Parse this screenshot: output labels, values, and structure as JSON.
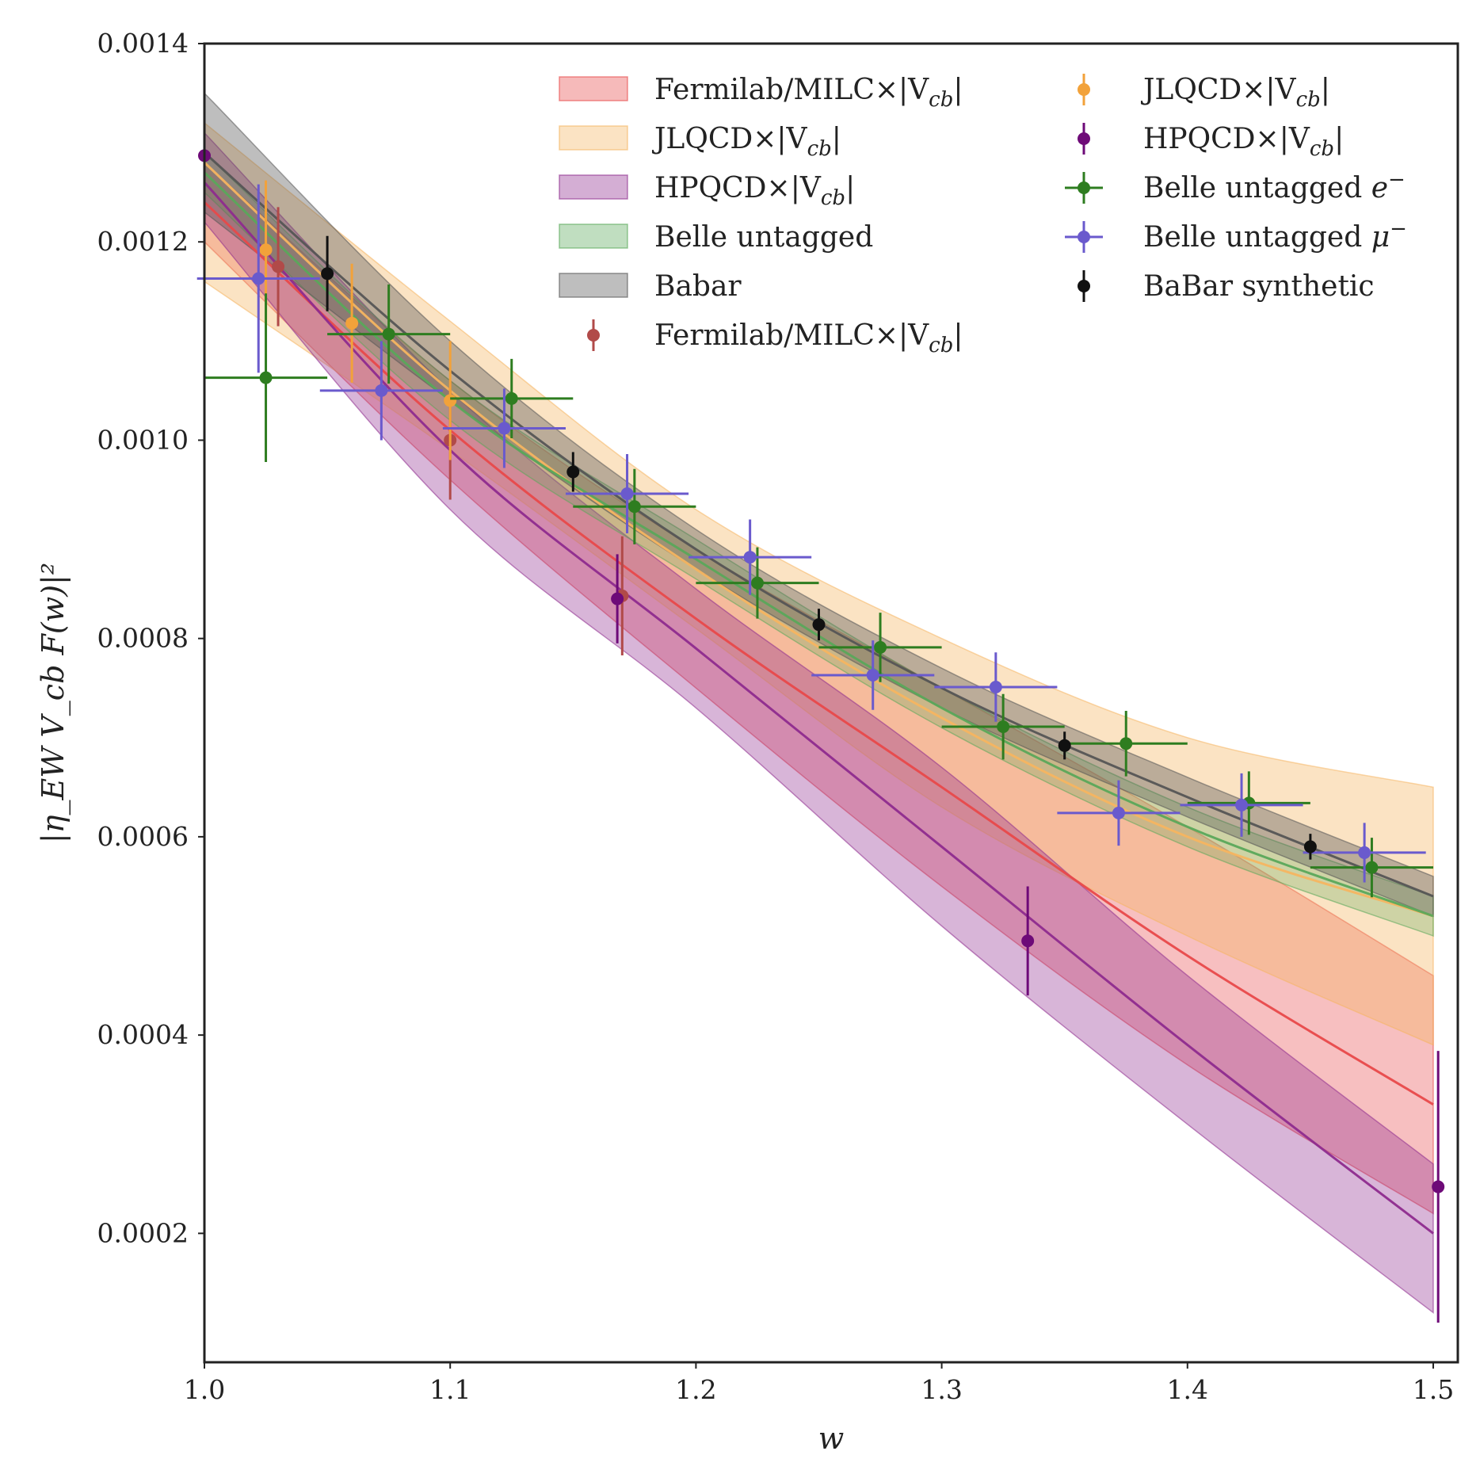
{
  "chart_data": {
    "type": "line",
    "title": "",
    "xlabel": "w",
    "ylabel": "|η_EW V_cb F(w)|²",
    "xlim": [
      1.0,
      1.51
    ],
    "ylim": [
      7e-05,
      0.0014
    ],
    "x_ticks": [
      {
        "v": 1.0,
        "label": "1.0"
      },
      {
        "v": 1.1,
        "label": "1.1"
      },
      {
        "v": 1.2,
        "label": "1.2"
      },
      {
        "v": 1.3,
        "label": "1.3"
      },
      {
        "v": 1.4,
        "label": "1.4"
      },
      {
        "v": 1.5,
        "label": "1.5"
      }
    ],
    "y_ticks": [
      {
        "v": 0.0002,
        "label": "0.0002"
      },
      {
        "v": 0.0004,
        "label": "0.0004"
      },
      {
        "v": 0.0006,
        "label": "0.0006"
      },
      {
        "v": 0.0008,
        "label": "0.0008"
      },
      {
        "v": 0.001,
        "label": "0.0010"
      },
      {
        "v": 0.0012,
        "label": "0.0012"
      },
      {
        "v": 0.0014,
        "label": "0.0014"
      }
    ],
    "grid": false,
    "legend_position": "top-right",
    "bands": [
      {
        "name": "Fermilab/MILC×|V_cb|",
        "color": "#e8494a",
        "opacity": 0.35,
        "x": [
          1.0,
          1.1,
          1.2,
          1.3,
          1.4,
          1.5
        ],
        "center": [
          0.00124,
          0.00101,
          0.00082,
          0.00065,
          0.00048,
          0.00033
        ],
        "lower": [
          0.0012,
          0.00096,
          0.00075,
          0.00055,
          0.00037,
          0.00022
        ],
        "upper": [
          0.00128,
          0.00106,
          0.00089,
          0.00075,
          0.00061,
          0.00046
        ]
      },
      {
        "name": "JLQCD×|V_cb|",
        "color": "#f5b560",
        "opacity": 0.38,
        "x": [
          1.0,
          1.1,
          1.2,
          1.3,
          1.4,
          1.5
        ],
        "center": [
          0.00128,
          0.00105,
          0.00087,
          0.00072,
          0.0006,
          0.00052
        ],
        "lower": [
          0.00116,
          0.00099,
          0.00081,
          0.00063,
          0.0005,
          0.00039
        ],
        "upper": [
          0.00132,
          0.00112,
          0.00093,
          0.0008,
          0.0007,
          0.00065
        ]
      },
      {
        "name": "HPQCD×|V_cb|",
        "color": "#8e2b8e",
        "opacity": 0.35,
        "x": [
          1.0,
          1.1,
          1.2,
          1.3,
          1.4,
          1.5
        ],
        "center": [
          0.00126,
          0.00099,
          0.00079,
          0.00059,
          0.00039,
          0.0002
        ],
        "lower": [
          0.00122,
          0.00093,
          0.00073,
          0.00051,
          0.00031,
          0.00012
        ],
        "upper": [
          0.00131,
          0.00105,
          0.00085,
          0.00067,
          0.00046,
          0.00027
        ]
      },
      {
        "name": "Belle untagged",
        "color": "#5aa85a",
        "opacity": 0.28,
        "x": [
          1.0,
          1.1,
          1.2,
          1.3,
          1.4,
          1.5
        ],
        "center": [
          0.00127,
          0.00104,
          0.00088,
          0.00073,
          0.00061,
          0.00052
        ],
        "lower": [
          0.00125,
          0.00102,
          0.00086,
          0.00071,
          0.00059,
          0.0005
        ],
        "upper": [
          0.00129,
          0.00106,
          0.0009,
          0.00075,
          0.00063,
          0.00054
        ]
      },
      {
        "name": "Babar",
        "color": "#555555",
        "opacity": 0.38,
        "x": [
          1.0,
          1.1,
          1.2,
          1.3,
          1.4,
          1.5
        ],
        "center": [
          0.00129,
          0.00107,
          0.00089,
          0.00075,
          0.00064,
          0.00054
        ],
        "lower": [
          0.00123,
          0.00104,
          0.00087,
          0.00073,
          0.00062,
          0.00052
        ],
        "upper": [
          0.00135,
          0.0011,
          0.00091,
          0.00077,
          0.00066,
          0.00056
        ]
      }
    ],
    "series": [
      {
        "name": "Fermilab/MILC×|V_cb|",
        "color": "#b14a49",
        "x": [
          1.03,
          1.1,
          1.17
        ],
        "y": [
          0.001175,
          0.001,
          0.000843
        ],
        "yerr": [
          6e-05,
          6e-05,
          6e-05
        ],
        "xerr": [
          0,
          0,
          0
        ]
      },
      {
        "name": "JLQCD×|V_cb|",
        "color": "#f2a23a",
        "x": [
          1.025,
          1.06,
          1.1
        ],
        "y": [
          0.001192,
          0.001118,
          0.00104
        ],
        "yerr": [
          7e-05,
          6e-05,
          6e-05
        ],
        "xerr": [
          0,
          0,
          0
        ]
      },
      {
        "name": "HPQCD×|V_cb|",
        "color": "#6e0a78",
        "x": [
          1.0,
          1.168,
          1.335,
          1.502
        ],
        "y": [
          0.001287,
          0.00084,
          0.000495,
          0.000247
        ],
        "yerr": [
          1e-05,
          4.5e-05,
          5.5e-05,
          0.000137
        ],
        "xerr": [
          0,
          0,
          0,
          0
        ]
      },
      {
        "name": "Belle untagged e⁻",
        "color": "#2e7d20",
        "x": [
          1.025,
          1.075,
          1.125,
          1.175,
          1.225,
          1.275,
          1.325,
          1.375,
          1.425,
          1.475
        ],
        "y": [
          0.001063,
          0.001107,
          0.001042,
          0.000933,
          0.000856,
          0.000791,
          0.000711,
          0.000694,
          0.000634,
          0.000569
        ],
        "yerr": [
          8.5e-05,
          5e-05,
          4e-05,
          3.8e-05,
          3.6e-05,
          3.5e-05,
          3.3e-05,
          3.3e-05,
          3.2e-05,
          3e-05
        ],
        "xerr": [
          0.025,
          0.025,
          0.025,
          0.025,
          0.025,
          0.025,
          0.025,
          0.025,
          0.025,
          0.025
        ]
      },
      {
        "name": "Belle untagged μ⁻",
        "color": "#6a5acd",
        "x": [
          1.022,
          1.072,
          1.122,
          1.172,
          1.222,
          1.272,
          1.322,
          1.372,
          1.422,
          1.472
        ],
        "y": [
          0.001163,
          0.00105,
          0.001012,
          0.000946,
          0.000882,
          0.000763,
          0.000751,
          0.000624,
          0.000632,
          0.000584
        ],
        "yerr": [
          9.5e-05,
          5e-05,
          4e-05,
          4e-05,
          3.8e-05,
          3.5e-05,
          3.5e-05,
          3.3e-05,
          3.2e-05,
          3e-05
        ],
        "xerr": [
          0.025,
          0.025,
          0.025,
          0.025,
          0.025,
          0.025,
          0.025,
          0.025,
          0.025,
          0.025
        ]
      },
      {
        "name": "BaBar synthetic",
        "color": "#111111",
        "x": [
          1.05,
          1.15,
          1.25,
          1.35,
          1.45
        ],
        "y": [
          0.001168,
          0.000968,
          0.000814,
          0.000692,
          0.00059
        ],
        "yerr": [
          3.8e-05,
          2e-05,
          1.6e-05,
          1.4e-05,
          1.3e-05
        ],
        "xerr": [
          0,
          0,
          0,
          0,
          0
        ]
      }
    ]
  },
  "legend": {
    "left": [
      {
        "label": "Fermilab/MILC×|V",
        "sub": "cb",
        "suffix": "|",
        "color": "#e8494a",
        "kind": "band"
      },
      {
        "label": "JLQCD×|V",
        "sub": "cb",
        "suffix": "|",
        "color": "#f5b560",
        "kind": "band"
      },
      {
        "label": "HPQCD×|V",
        "sub": "cb",
        "suffix": "|",
        "color": "#8e2b8e",
        "kind": "band"
      },
      {
        "label": "Belle untagged",
        "sub": "",
        "suffix": "",
        "color": "#5aa85a",
        "kind": "band"
      },
      {
        "label": "Babar",
        "sub": "",
        "suffix": "",
        "color": "#555555",
        "kind": "band"
      },
      {
        "label": "Fermilab/MILC×|V",
        "sub": "cb",
        "suffix": "|",
        "color": "#b14a49",
        "kind": "point"
      }
    ],
    "right": [
      {
        "label": "JLQCD×|V",
        "sub": "cb",
        "suffix": "|",
        "color": "#f2a23a",
        "kind": "point"
      },
      {
        "label": "HPQCD×|V",
        "sub": "cb",
        "suffix": "|",
        "color": "#6e0a78",
        "kind": "point"
      },
      {
        "label": "Belle untagged ",
        "sup": "−",
        "var": "e",
        "color": "#2e7d20",
        "kind": "pointx"
      },
      {
        "label": "Belle untagged ",
        "sup": "−",
        "var": "μ",
        "color": "#6a5acd",
        "kind": "pointx"
      },
      {
        "label": "BaBar synthetic",
        "color": "#111111",
        "kind": "point"
      }
    ]
  }
}
